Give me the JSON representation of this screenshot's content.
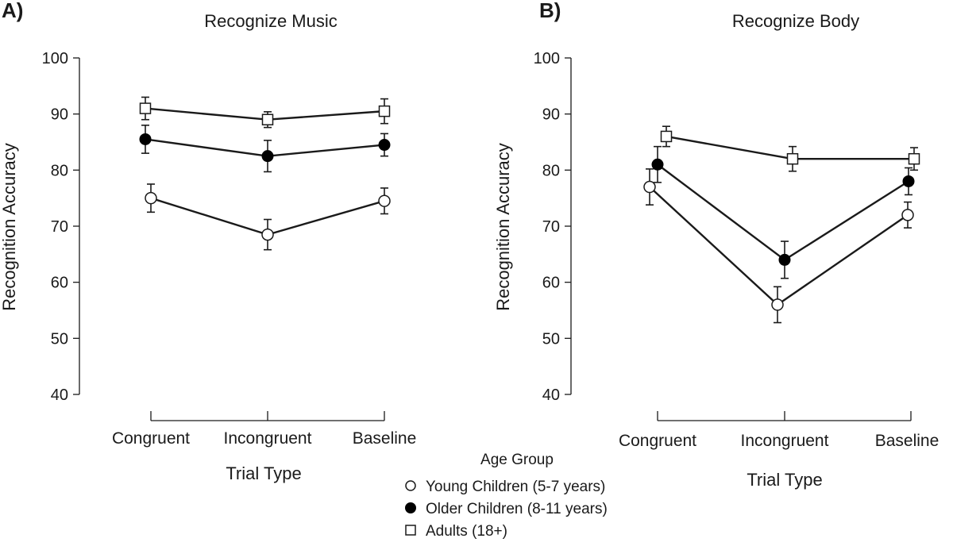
{
  "chart_data": [
    {
      "type": "line",
      "panel_label": "A)",
      "title": "Recognize Music",
      "xlabel": "Trial Type",
      "ylabel": "Recognition Accuracy",
      "categories": [
        "Congruent",
        "Incongruent",
        "Baseline"
      ],
      "ylim": [
        40,
        100
      ],
      "yticks": [
        40,
        50,
        60,
        70,
        80,
        90,
        100
      ],
      "ytick_labels": [
        "40",
        "50",
        "60",
        "70",
        "80",
        "90",
        "100"
      ],
      "series": [
        {
          "name": "Young Children (5-7 years)",
          "marker": "circle-open",
          "values": [
            75,
            68.5,
            74.5
          ],
          "errors": [
            2.5,
            2.7,
            2.3
          ]
        },
        {
          "name": "Older Children (8-11 years)",
          "marker": "circle-filled",
          "values": [
            85.5,
            82.5,
            84.5
          ],
          "errors": [
            2.5,
            2.8,
            2.0
          ]
        },
        {
          "name": "Adults (18+)",
          "marker": "square-open",
          "values": [
            91,
            89,
            90.5
          ],
          "errors": [
            2.0,
            1.4,
            2.2
          ]
        }
      ]
    },
    {
      "type": "line",
      "panel_label": "B)",
      "title": "Recognize Body",
      "xlabel": "Trial Type",
      "ylabel": "Recognition Accuracy",
      "categories": [
        "Congruent",
        "Incongruent",
        "Baseline"
      ],
      "ylim": [
        40,
        100
      ],
      "yticks": [
        40,
        50,
        60,
        70,
        80,
        90,
        100
      ],
      "ytick_labels": [
        "40",
        "50",
        "60",
        "70",
        "80",
        "90",
        "100"
      ],
      "series": [
        {
          "name": "Young Children (5-7 years)",
          "marker": "circle-open",
          "values": [
            77,
            56,
            72
          ],
          "errors": [
            3.2,
            3.2,
            2.3
          ]
        },
        {
          "name": "Older Children (8-11 years)",
          "marker": "circle-filled",
          "values": [
            81,
            64,
            78
          ],
          "errors": [
            3.2,
            3.3,
            2.4
          ]
        },
        {
          "name": "Adults (18+)",
          "marker": "square-open",
          "values": [
            86,
            82,
            82
          ],
          "errors": [
            1.8,
            2.2,
            2.0
          ]
        }
      ]
    }
  ],
  "legend": {
    "title": "Age Group",
    "position": "bottom-center",
    "entries": [
      {
        "label": "Young Children (5-7 years)",
        "marker": "circle-open"
      },
      {
        "label": "Older Children (8-11 years)",
        "marker": "circle-filled"
      },
      {
        "label": "Adults (18+)",
        "marker": "square-open"
      }
    ]
  }
}
